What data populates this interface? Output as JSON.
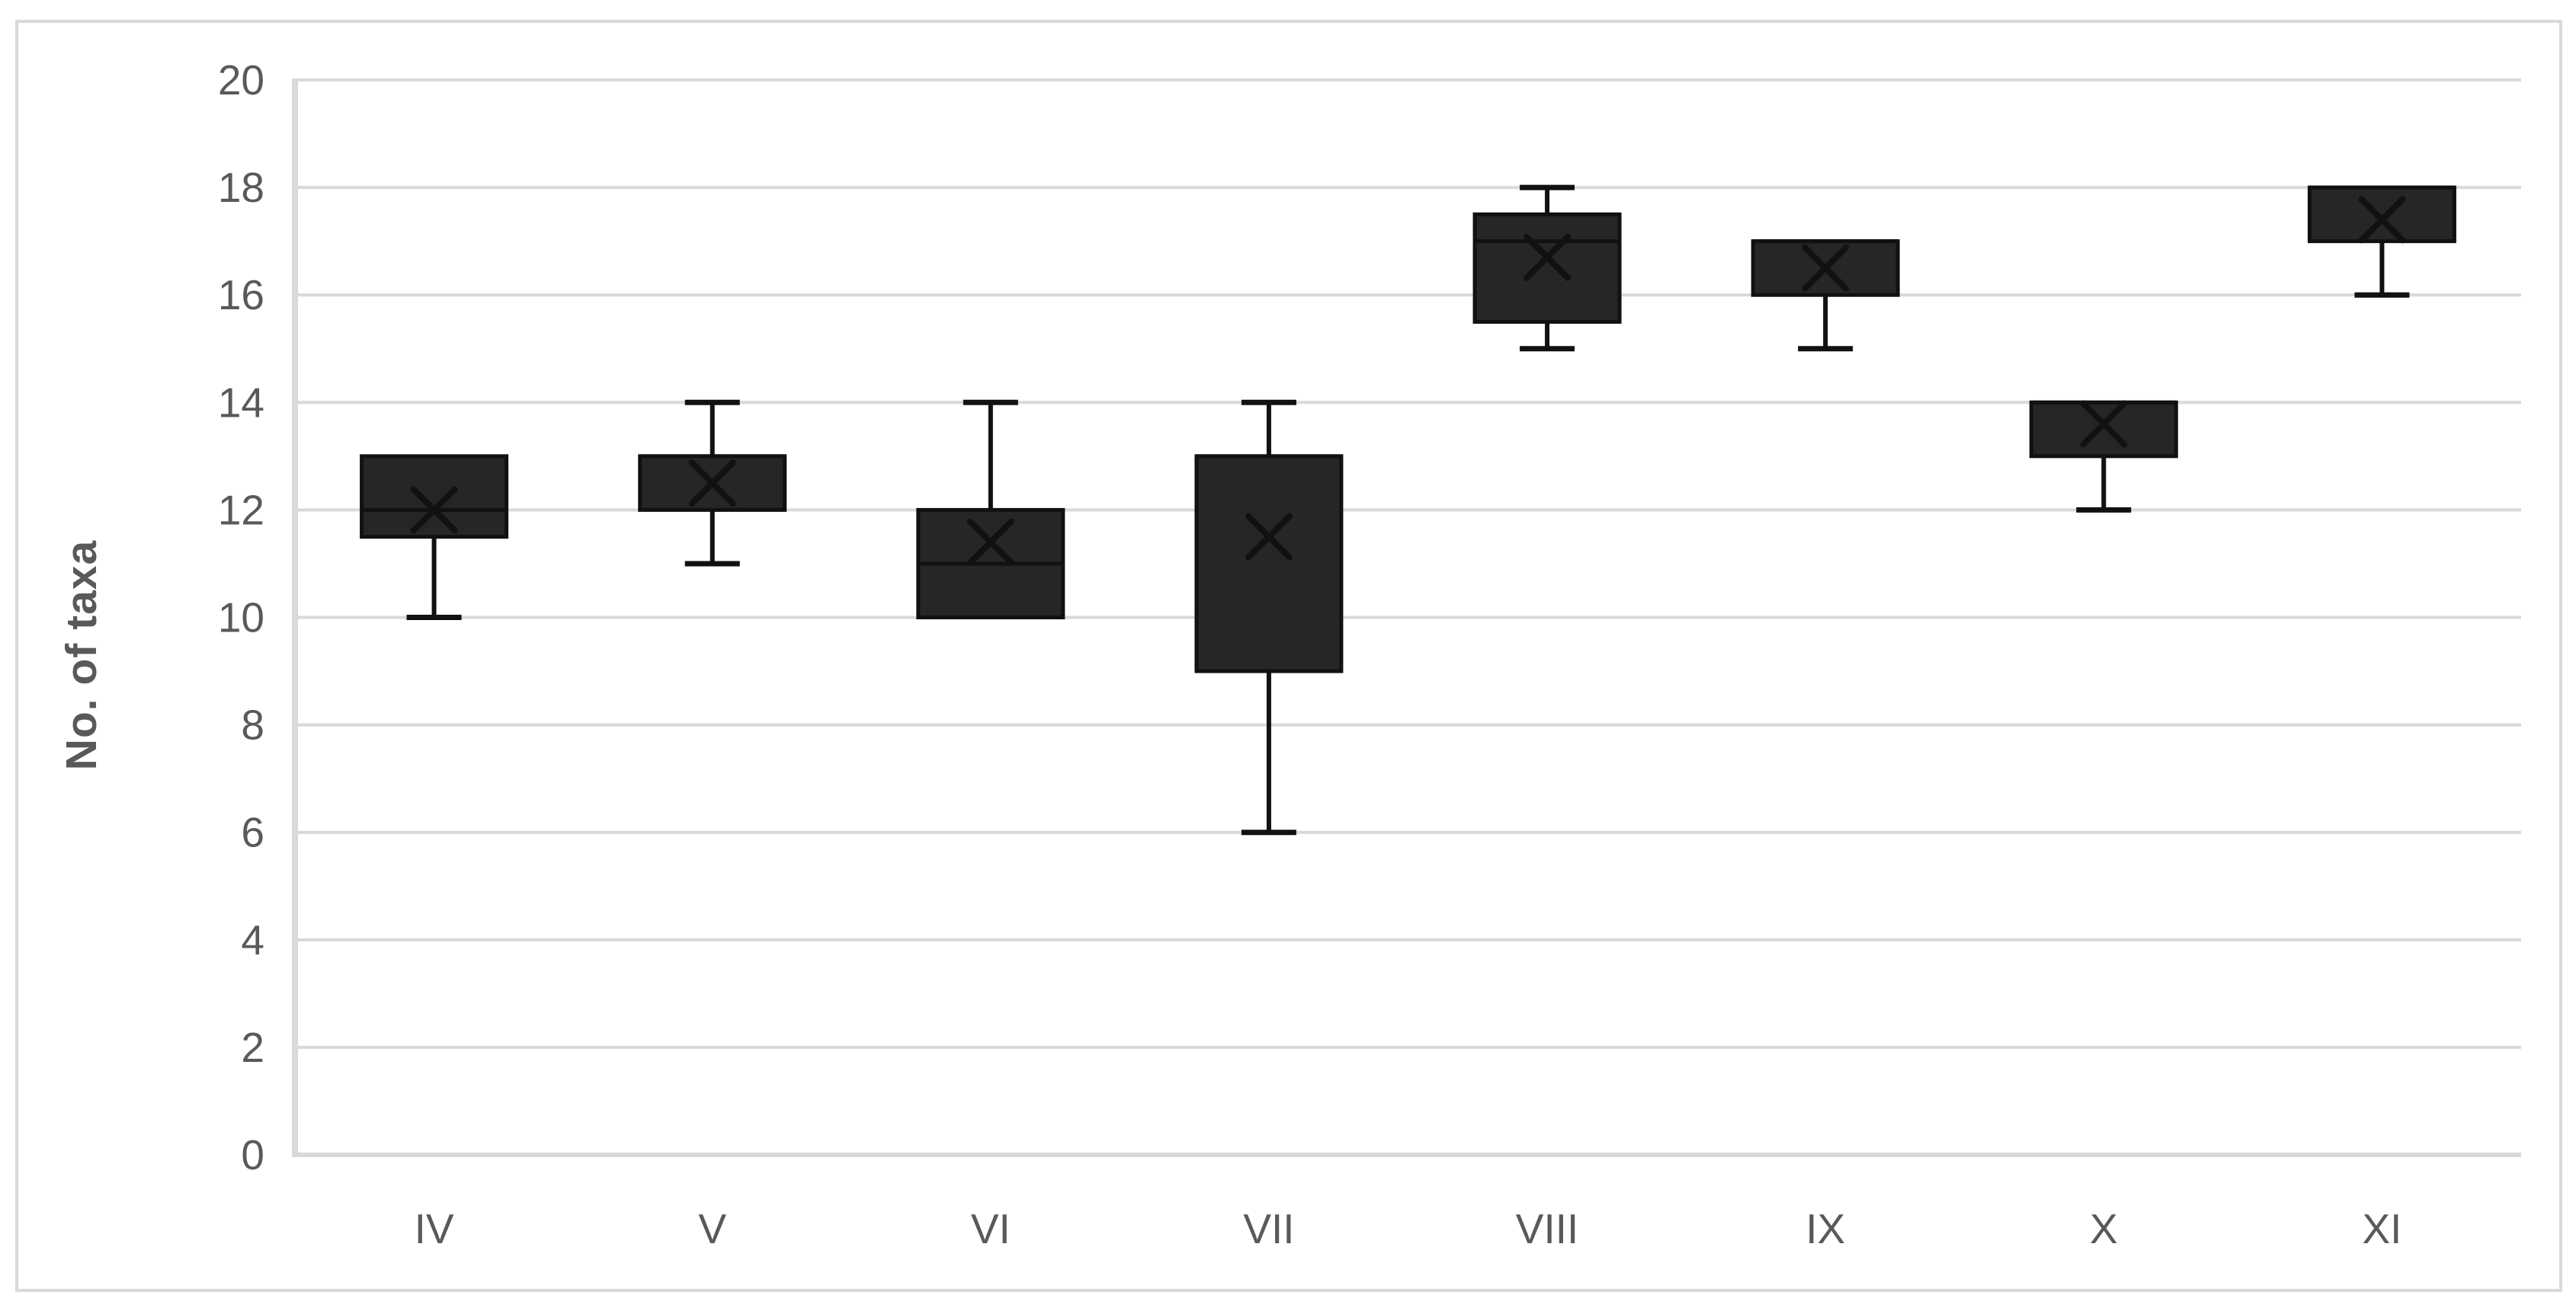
{
  "chart_data": {
    "type": "boxplot",
    "title": "",
    "xlabel": "",
    "ylabel": "No. of taxa",
    "ylim": [
      0,
      20
    ],
    "yticks": [
      0,
      2,
      4,
      6,
      8,
      10,
      12,
      14,
      16,
      18,
      20
    ],
    "grid": "horizontal",
    "legend": "none",
    "categories": [
      "IV",
      "V",
      "VI",
      "VII",
      "VIII",
      "IX",
      "X",
      "XI"
    ],
    "series": [
      {
        "category": "IV",
        "whisker_low": 10,
        "q1": 11.5,
        "median": 12,
        "q3": 13,
        "whisker_high": 13,
        "mean": 12.0
      },
      {
        "category": "V",
        "whisker_low": 11,
        "q1": 12,
        "median": 13,
        "q3": 13,
        "whisker_high": 14,
        "mean": 12.5
      },
      {
        "category": "VI",
        "whisker_low": 10,
        "q1": 10,
        "median": 11,
        "q3": 12,
        "whisker_high": 14,
        "mean": 11.4
      },
      {
        "category": "VII",
        "whisker_low": 6,
        "q1": 9,
        "median": 13,
        "q3": 13,
        "whisker_high": 14,
        "mean": 11.5
      },
      {
        "category": "VIII",
        "whisker_low": 15,
        "q1": 15.5,
        "median": 17,
        "q3": 17.5,
        "whisker_high": 18,
        "mean": 16.7
      },
      {
        "category": "IX",
        "whisker_low": 15,
        "q1": 16,
        "median": 17,
        "q3": 17,
        "whisker_high": 17,
        "mean": 16.5
      },
      {
        "category": "X",
        "whisker_low": 12,
        "q1": 13,
        "median": 14,
        "q3": 14,
        "whisker_high": 14,
        "mean": 13.6
      },
      {
        "category": "XI",
        "whisker_low": 16,
        "q1": 17,
        "median": 18,
        "q3": 18,
        "whisker_high": 18,
        "mean": 17.4
      }
    ]
  },
  "colors": {
    "background": "#ffffff",
    "chart_border": "#d9d9d9",
    "gridline": "#d9d9d9",
    "axis_line": "#d9d9d9",
    "tick_text": "#595959",
    "axis_title_text": "#595959",
    "box_fill": "#262626",
    "box_stroke": "#111111",
    "median_stroke": "#111111",
    "whisker_stroke": "#111111",
    "mean_marker_stroke": "#111111"
  }
}
